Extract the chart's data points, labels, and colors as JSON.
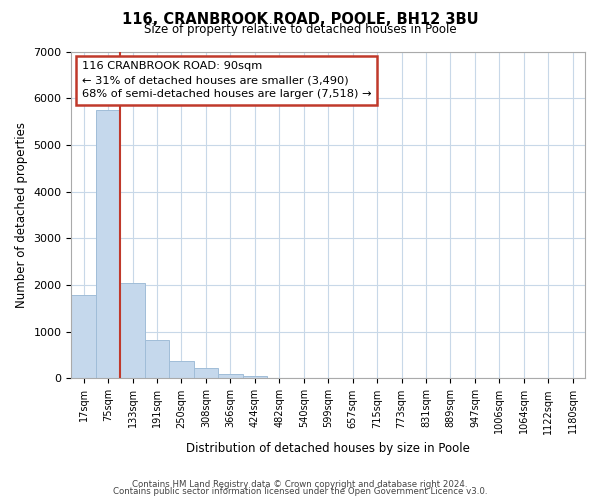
{
  "title": "116, CRANBROOK ROAD, POOLE, BH12 3BU",
  "subtitle": "Size of property relative to detached houses in Poole",
  "xlabel": "Distribution of detached houses by size in Poole",
  "ylabel": "Number of detached properties",
  "bar_values": [
    1780,
    5750,
    2050,
    830,
    370,
    220,
    100,
    55,
    20,
    10,
    5,
    2,
    1,
    0,
    0,
    0,
    0,
    0,
    0,
    0,
    0
  ],
  "bar_labels": [
    "17sqm",
    "75sqm",
    "133sqm",
    "191sqm",
    "250sqm",
    "308sqm",
    "366sqm",
    "424sqm",
    "482sqm",
    "540sqm",
    "599sqm",
    "657sqm",
    "715sqm",
    "773sqm",
    "831sqm",
    "889sqm",
    "947sqm",
    "1006sqm",
    "1064sqm",
    "1122sqm",
    "1180sqm"
  ],
  "ylim": [
    0,
    7000
  ],
  "yticks": [
    0,
    1000,
    2000,
    3000,
    4000,
    5000,
    6000,
    7000
  ],
  "bar_color": "#c5d8ec",
  "bar_edge_color": "#a0bdd8",
  "vline_color": "#c0392b",
  "annotation_text": "116 CRANBROOK ROAD: 90sqm\n← 31% of detached houses are smaller (3,490)\n68% of semi-detached houses are larger (7,518) →",
  "annotation_box_color": "#ffffff",
  "annotation_box_edge": "#c0392b",
  "footer_line1": "Contains HM Land Registry data © Crown copyright and database right 2024.",
  "footer_line2": "Contains public sector information licensed under the Open Government Licence v3.0.",
  "background_color": "#ffffff",
  "grid_color": "#c8d8e8"
}
